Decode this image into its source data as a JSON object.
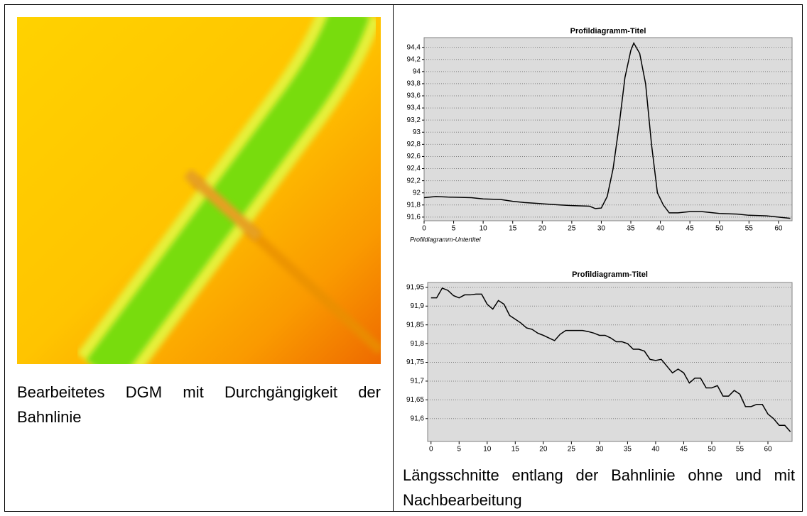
{
  "left": {
    "caption": "Bearbeitetes DGM mit Durchgängigkeit der Bahnlinie"
  },
  "right": {
    "caption": "Längsschnitte entlang der Bahnlinie ohne und mit Nachbearbeitung"
  },
  "chart_data": [
    {
      "type": "line",
      "title": "Profildiagramm-Titel",
      "subtitle": "Profildiagramm-Untertitel",
      "x": [
        0,
        2,
        4,
        8,
        10,
        13,
        15,
        17,
        20,
        23,
        25,
        28,
        29,
        30,
        31,
        32,
        33,
        34,
        35,
        35.5,
        36.5,
        37.5,
        38.5,
        39.5,
        40.5,
        41.5,
        43,
        45,
        47,
        50,
        53,
        55,
        58,
        60,
        62
      ],
      "values": [
        91.92,
        91.94,
        91.93,
        91.92,
        91.9,
        91.89,
        91.86,
        91.84,
        91.82,
        91.8,
        91.79,
        91.78,
        91.74,
        91.75,
        91.94,
        92.4,
        93.1,
        93.9,
        94.35,
        94.47,
        94.3,
        93.8,
        92.8,
        92.0,
        91.8,
        91.67,
        91.67,
        91.69,
        91.69,
        91.66,
        91.65,
        91.63,
        91.62,
        91.6,
        91.58
      ],
      "color": "#000000",
      "xlim": [
        0,
        62.3
      ],
      "ylim": [
        91.54,
        94.56
      ],
      "xticks": [
        0,
        5,
        10,
        15,
        20,
        25,
        30,
        35,
        40,
        45,
        50,
        55,
        60
      ],
      "yticks": [
        {
          "value": 91.6,
          "label": "91,6"
        },
        {
          "value": 91.8,
          "label": "91,8"
        },
        92,
        {
          "value": 92.2,
          "label": "92,2"
        },
        {
          "value": 92.4,
          "label": "92,4"
        },
        {
          "value": 92.6,
          "label": "92,6"
        },
        {
          "value": 92.8,
          "label": "92,8"
        },
        93,
        {
          "value": 93.2,
          "label": "93,2"
        },
        {
          "value": 93.4,
          "label": "93,4"
        },
        {
          "value": 93.6,
          "label": "93,6"
        },
        {
          "value": 93.8,
          "label": "93,8"
        },
        94,
        {
          "value": 94.2,
          "label": "94,2"
        },
        {
          "value": 94.4,
          "label": "94,4"
        }
      ],
      "grid": true
    },
    {
      "type": "line",
      "title": "Profildiagramm-Titel",
      "x": [
        0,
        1,
        2,
        3,
        4,
        5,
        6,
        7,
        8,
        9,
        10,
        11,
        12,
        13,
        14,
        15,
        16,
        17,
        18,
        19,
        20,
        21,
        22,
        23,
        24,
        25,
        26,
        27,
        28,
        29,
        30,
        31,
        32,
        33,
        34,
        35,
        36,
        37,
        38,
        39,
        40,
        41,
        42,
        43,
        44,
        45,
        46,
        47,
        48,
        49,
        50,
        51,
        52,
        53,
        54,
        55,
        56,
        57,
        58,
        59,
        60,
        61,
        62,
        63,
        64
      ],
      "values": [
        91.922,
        91.922,
        91.948,
        91.942,
        91.928,
        91.922,
        91.93,
        91.93,
        91.932,
        91.932,
        91.905,
        91.892,
        91.915,
        91.905,
        91.875,
        91.865,
        91.855,
        91.842,
        91.838,
        91.828,
        91.822,
        91.815,
        91.808,
        91.825,
        91.835,
        91.835,
        91.835,
        91.835,
        91.832,
        91.828,
        91.822,
        91.822,
        91.815,
        91.805,
        91.805,
        91.8,
        91.785,
        91.785,
        91.78,
        91.758,
        91.755,
        91.758,
        91.74,
        91.722,
        91.732,
        91.722,
        91.695,
        91.708,
        91.708,
        91.682,
        91.682,
        91.688,
        91.66,
        91.66,
        91.675,
        91.665,
        91.632,
        91.632,
        91.638,
        91.638,
        91.612,
        91.6,
        91.582,
        91.582,
        91.565
      ],
      "color": "#000000",
      "xlim": [
        -0.6,
        64.3
      ],
      "ylim": [
        91.539,
        91.963
      ],
      "xticks": [
        0,
        5,
        10,
        15,
        20,
        25,
        30,
        35,
        40,
        45,
        50,
        55,
        60
      ],
      "yticks": [
        {
          "value": 91.6,
          "label": "91,6"
        },
        {
          "value": 91.65,
          "label": "91,65"
        },
        {
          "value": 91.7,
          "label": "91,7"
        },
        {
          "value": 91.75,
          "label": "91,75"
        },
        {
          "value": 91.8,
          "label": "91,8"
        },
        {
          "value": 91.85,
          "label": "91,85"
        },
        {
          "value": 91.9,
          "label": "91,9"
        },
        {
          "value": 91.95,
          "label": "91,95"
        }
      ],
      "grid": true
    }
  ]
}
